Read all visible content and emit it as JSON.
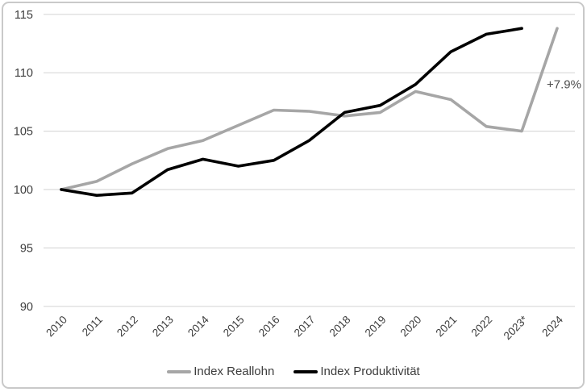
{
  "chart_data": {
    "type": "line",
    "categories": [
      "2010",
      "2011",
      "2012",
      "2013",
      "2014",
      "2015",
      "2016",
      "2017",
      "2018",
      "2019",
      "2020",
      "2021",
      "2022",
      "2023*",
      "2024"
    ],
    "series": [
      {
        "name": "Index Reallohn",
        "color": "#a6a6a6",
        "values": [
          100.0,
          100.7,
          102.2,
          103.5,
          104.2,
          105.5,
          106.8,
          106.7,
          106.3,
          106.6,
          108.4,
          107.7,
          105.4,
          105.0,
          113.8
        ]
      },
      {
        "name": "Index Produktivität",
        "color": "#000000",
        "values": [
          100.0,
          99.5,
          99.7,
          101.7,
          102.6,
          102.0,
          102.5,
          104.2,
          106.6,
          107.2,
          109.0,
          111.8,
          113.3,
          113.8,
          null
        ]
      }
    ],
    "ylim": [
      90,
      115
    ],
    "yticks": [
      90,
      95,
      100,
      105,
      110,
      115
    ],
    "grid": true,
    "legend_position": "bottom",
    "annotation": {
      "text": "+7.9%",
      "x": "2024",
      "y": 109,
      "color": "#4d4d4d"
    },
    "colors": {
      "gridline": "#d9d9d9",
      "tick_label": "#3d3d3d",
      "frame_border": "#c9c9c9"
    }
  }
}
